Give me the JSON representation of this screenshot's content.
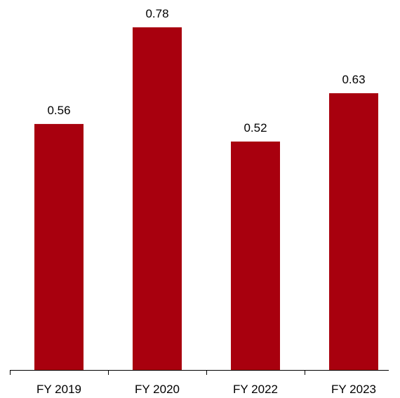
{
  "chart_data": {
    "type": "bar",
    "categories": [
      "FY 2019",
      "FY 2020",
      "FY 2022",
      "FY 2023"
    ],
    "values": [
      0.56,
      0.78,
      0.52,
      0.63
    ],
    "value_labels": [
      "0.56",
      "0.78",
      "0.52",
      "0.63"
    ],
    "title": "",
    "xlabel": "",
    "ylabel": "",
    "ylim": [
      0,
      0.8
    ],
    "grid": false,
    "legend": "none",
    "colors": {
      "bar": "#A8000E",
      "axis": "#000000",
      "text": "#000000"
    }
  }
}
